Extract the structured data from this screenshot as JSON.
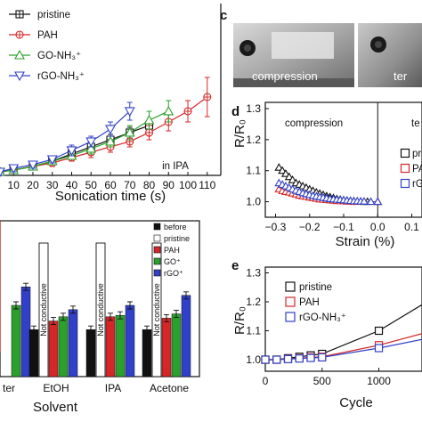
{
  "panel_letters": {
    "c": "c",
    "d": "d",
    "e": "e"
  },
  "photos": [
    {
      "label": "compression"
    },
    {
      "label": "ter"
    }
  ],
  "colors": {
    "pristine": "#111111",
    "PAH": "#d62728",
    "GO": "#2ca02c",
    "rGO": "#3040c8",
    "white": "#ffffff"
  },
  "chart_data": [
    {
      "id": "sonication",
      "type": "line",
      "xlabel": "Sonication time (s)",
      "x_ticks": [
        "10",
        "20",
        "30",
        "40",
        "50",
        "60",
        "70",
        "80",
        "90",
        "100",
        "110"
      ],
      "xlim": [
        3,
        117
      ],
      "ylim": [
        0,
        1
      ],
      "annotation": "in IPA",
      "legend": [
        "pristine",
        "PAH",
        "GO-NH₃⁺",
        "rGO-NH₃⁺"
      ],
      "series": [
        {
          "name": "pristine",
          "marker": "square-cross",
          "x": [
            3,
            10,
            20,
            30,
            40,
            50,
            60,
            70,
            80
          ],
          "y": [
            0.02,
            0.03,
            0.05,
            0.08,
            0.12,
            0.16,
            0.2,
            0.24,
            0.28
          ],
          "err": [
            0.02,
            0.02,
            0.02,
            0.02,
            0.02,
            0.02,
            0.03,
            0.03,
            0.03
          ]
        },
        {
          "name": "PAH",
          "marker": "circle-cross",
          "x": [
            3,
            10,
            20,
            30,
            40,
            50,
            60,
            70,
            80,
            90,
            100,
            110
          ],
          "y": [
            0.02,
            0.03,
            0.05,
            0.07,
            0.1,
            0.13,
            0.16,
            0.19,
            0.24,
            0.3,
            0.36,
            0.44
          ],
          "err": [
            0.02,
            0.02,
            0.02,
            0.02,
            0.02,
            0.03,
            0.03,
            0.03,
            0.04,
            0.05,
            0.06,
            0.11
          ]
        },
        {
          "name": "GO-NH₃⁺",
          "marker": "triangle-up",
          "x": [
            3,
            10,
            20,
            30,
            40,
            50,
            60,
            70,
            80,
            90
          ],
          "y": [
            0.02,
            0.03,
            0.05,
            0.08,
            0.11,
            0.15,
            0.19,
            0.24,
            0.31,
            0.36
          ],
          "err": [
            0.02,
            0.02,
            0.02,
            0.02,
            0.02,
            0.03,
            0.03,
            0.04,
            0.05,
            0.06
          ]
        },
        {
          "name": "rGO-NH₃⁺",
          "marker": "triangle-down",
          "x": [
            3,
            10,
            20,
            30,
            40,
            50,
            60,
            70
          ],
          "y": [
            0.02,
            0.04,
            0.06,
            0.09,
            0.14,
            0.19,
            0.26,
            0.36
          ],
          "err": [
            0.02,
            0.02,
            0.02,
            0.02,
            0.03,
            0.03,
            0.04,
            0.05
          ]
        }
      ]
    },
    {
      "id": "solvent",
      "type": "bar",
      "xlabel": "Solvent",
      "categories": [
        "ter",
        "EtOH",
        "IPA",
        "Acetone"
      ],
      "ylim": [
        0,
        1
      ],
      "not_conductive_label": "Not conductive",
      "legend": [
        "before",
        "pristine",
        "PAH",
        "GO⁺",
        "rGO⁺"
      ],
      "series": [
        {
          "name": "before",
          "values": [
            null,
            0.33,
            0.33,
            0.33
          ]
        },
        {
          "name": "pristine",
          "values": [
            null,
            null,
            null,
            null
          ]
        },
        {
          "name": "PAH",
          "values": [
            null,
            0.39,
            0.42,
            0.41
          ]
        },
        {
          "name": "GO⁺",
          "values": [
            0.5,
            0.42,
            0.43,
            0.44
          ]
        },
        {
          "name": "rGO⁺",
          "values": [
            0.63,
            0.47,
            0.5,
            0.57
          ]
        }
      ]
    },
    {
      "id": "strain",
      "type": "scatter",
      "xlabel": "Strain (%)",
      "ylabel": "R/R₀",
      "x_ticks": [
        "−0.3",
        "−0.2",
        "−0.1",
        "0.0",
        "0.1"
      ],
      "y_ticks": [
        "1.0",
        "1.1",
        "1.2",
        "1.3"
      ],
      "xlim": [
        -0.33,
        0.13
      ],
      "ylim": [
        0.95,
        1.32
      ],
      "region_labels": [
        "compression",
        "te"
      ],
      "legend": [
        "pr",
        "PA",
        "rG"
      ],
      "series": [
        {
          "name": "pristine",
          "marker": "triangle-up",
          "x": [
            -0.29,
            -0.28,
            -0.27,
            -0.26,
            -0.25,
            -0.24,
            -0.23,
            -0.22,
            -0.21,
            -0.2,
            -0.19,
            -0.18,
            -0.17,
            -0.16,
            -0.15,
            -0.14,
            -0.13,
            -0.12,
            -0.11,
            -0.1,
            -0.09,
            -0.08,
            -0.07,
            -0.06,
            -0.05,
            -0.04,
            -0.03,
            0.0
          ],
          "y": [
            1.11,
            1.1,
            1.09,
            1.08,
            1.07,
            1.06,
            1.055,
            1.05,
            1.045,
            1.04,
            1.035,
            1.03,
            1.026,
            1.022,
            1.018,
            1.015,
            1.012,
            1.009,
            1.007,
            1.005,
            1.004,
            1.003,
            1.002,
            1.001,
            1.001,
            1.0,
            1.0,
            1.0
          ]
        },
        {
          "name": "PAH",
          "marker": "triangle-up",
          "x": [
            -0.29,
            -0.28,
            -0.27,
            -0.26,
            -0.25,
            -0.24,
            -0.23,
            -0.22,
            -0.21,
            -0.2,
            -0.19,
            -0.18,
            -0.17,
            -0.16,
            -0.15,
            -0.14,
            -0.13,
            -0.12,
            -0.11,
            -0.1,
            -0.09,
            -0.08,
            -0.07,
            0.0
          ],
          "y": [
            1.04,
            1.035,
            1.032,
            1.03,
            1.027,
            1.024,
            1.02,
            1.018,
            1.016,
            1.014,
            1.012,
            1.01,
            1.008,
            1.007,
            1.006,
            1.005,
            1.004,
            1.003,
            1.002,
            1.002,
            1.001,
            1.001,
            1.0,
            1.0
          ]
        },
        {
          "name": "rGO",
          "marker": "triangle-up",
          "x": [
            -0.29,
            -0.28,
            -0.27,
            -0.26,
            -0.25,
            -0.24,
            -0.23,
            -0.22,
            -0.21,
            -0.2,
            -0.19,
            -0.18,
            -0.17,
            -0.16,
            -0.15,
            -0.14,
            -0.13,
            -0.12,
            -0.11,
            -0.1,
            -0.09,
            -0.08,
            -0.07,
            -0.06,
            -0.05,
            -0.04,
            -0.02,
            0.0
          ],
          "y": [
            1.06,
            1.055,
            1.05,
            1.045,
            1.04,
            1.036,
            1.032,
            1.028,
            1.025,
            1.022,
            1.019,
            1.017,
            1.015,
            1.013,
            1.011,
            1.009,
            1.008,
            1.007,
            1.006,
            1.005,
            1.004,
            1.003,
            1.002,
            1.002,
            1.001,
            1.001,
            1.0,
            1.0
          ]
        }
      ]
    },
    {
      "id": "cycle",
      "type": "line",
      "xlabel": "Cycle",
      "ylabel": "R/R₀",
      "x_ticks": [
        "0",
        "500",
        "1000"
      ],
      "y_ticks": [
        "1.0",
        "1.1",
        "1.2",
        "1.3"
      ],
      "xlim": [
        0,
        1380
      ],
      "ylim": [
        0.96,
        1.32
      ],
      "legend": [
        "pristine",
        "PAH",
        "rGO-NH₃⁺"
      ],
      "series": [
        {
          "name": "pristine",
          "marker": "square",
          "x": [
            0,
            100,
            200,
            300,
            400,
            500,
            1000,
            1380
          ],
          "y": [
            1.0,
            1.0,
            1.005,
            1.01,
            1.015,
            1.02,
            1.1,
            1.19
          ]
        },
        {
          "name": "PAH",
          "marker": "square",
          "x": [
            0,
            100,
            200,
            300,
            400,
            500,
            1000,
            1380
          ],
          "y": [
            1.0,
            1.0,
            1.003,
            1.005,
            1.008,
            1.01,
            1.05,
            1.09
          ]
        },
        {
          "name": "rGO-NH₃⁺",
          "marker": "square",
          "x": [
            0,
            100,
            200,
            300,
            400,
            500,
            1000,
            1380
          ],
          "y": [
            1.0,
            1.0,
            1.002,
            1.004,
            1.006,
            1.008,
            1.04,
            1.07
          ]
        }
      ]
    }
  ]
}
